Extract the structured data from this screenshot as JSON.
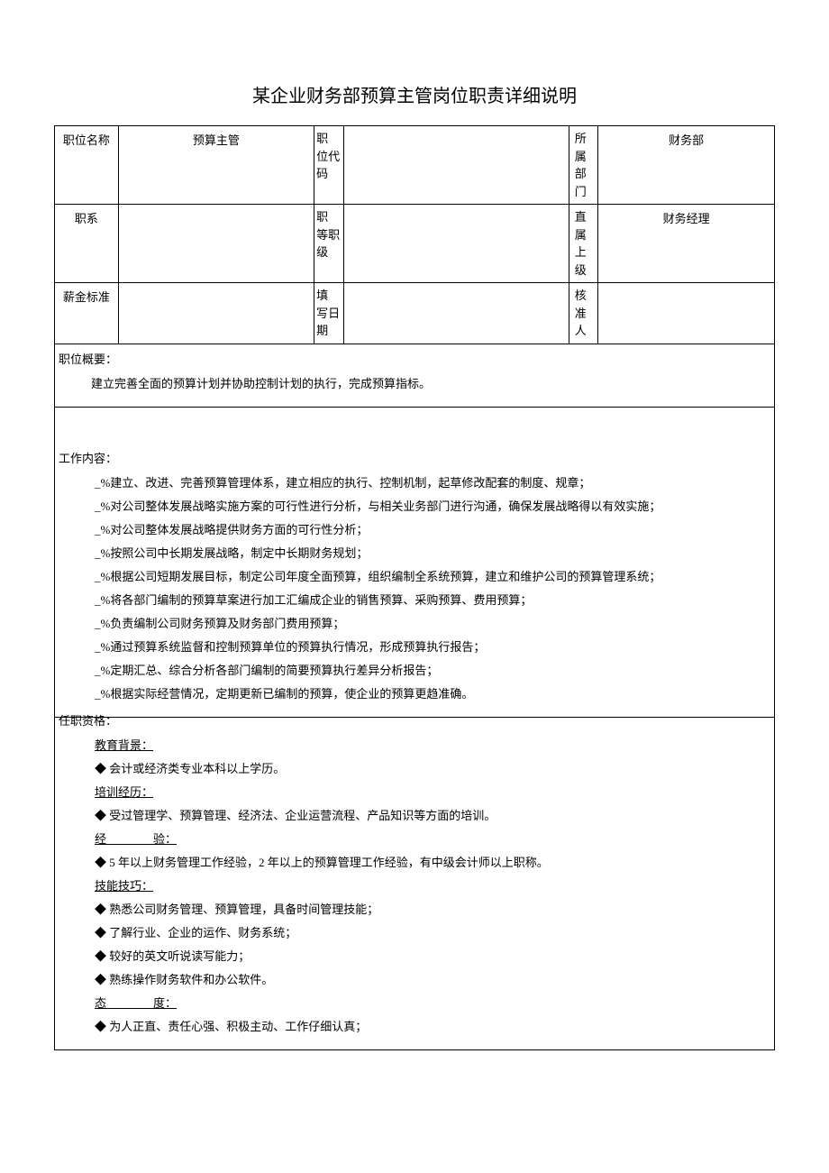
{
  "title": "某企业财务部预算主管岗位职责详细说明",
  "header_table": {
    "row1": {
      "label1": "职位名称",
      "value1": "预算主管",
      "label2": "职位代码",
      "value2": "",
      "label3": "所属部门",
      "value3": "财务部"
    },
    "row2": {
      "label1": "职系",
      "value1": "",
      "label2": "职等职级",
      "value2": "",
      "label3": "直属上级",
      "value3": "财务经理"
    },
    "row3": {
      "label1": "薪金标准",
      "value1": "",
      "label2": "填写日期",
      "value2": "",
      "label3": "核准人",
      "value3": ""
    }
  },
  "summary": {
    "header": "职位概要：",
    "body": "建立完善全面的预算计划并协助控制计划的执行，完成预算指标。"
  },
  "work": {
    "header": "工作内容：",
    "items": [
      "_%建立、改进、完善预算管理体系，建立相应的执行、控制机制，起草修改配套的制度、规章；",
      "_%对公司整体发展战略实施方案的可行性进行分析，与相关业务部门进行沟通，确保发展战略得以有效实施；",
      "_%对公司整体发展战略提供财务方面的可行性分析；",
      "_%按照公司中长期发展战略，制定中长期财务规划；",
      "_%根据公司短期发展目标，制定公司年度全面预算，组织编制全系统预算，建立和维护公司的预算管理系统；",
      "_%将各部门编制的预算草案进行加工汇编成企业的销售预算、采购预算、费用预算；",
      "_%负责编制公司财务预算及财务部门费用预算；",
      "_%通过预算系统监督和控制预算单位的预算执行情况，形成预算执行报告；",
      "_%定期汇总、综合分析各部门编制的简要预算执行差异分析报告；",
      "_%根据实际经营情况，定期更新已编制的预算，使企业的预算更趋准确。"
    ]
  },
  "qualifications": {
    "header": "任职资格：",
    "edu_header": "教育背景：",
    "edu_item": "◆ 会计或经济类专业本科以上学历。",
    "training_header": "培训经历：",
    "training_item": "◆ 受过管理学、预算管理、经济法、企业运营流程、产品知识等方面的培训。",
    "exp_header": "经　　　　验：",
    "exp_item": "◆ 5 年以上财务管理工作经验，2 年以上的预算管理工作经验，有中级会计师以上职称。",
    "skills_header": "技能技巧：",
    "skills": [
      "◆ 熟悉公司财务管理、预算管理，具备时间管理技能；",
      "◆ 了解行业、企业的运作、财务系统；",
      "◆ 较好的英文听说读写能力；",
      "◆ 熟练操作财务软件和办公软件。"
    ],
    "attitude_header": "态　　　　度：",
    "attitude_item": "◆ 为人正直、责任心强、积极主动、工作仔细认真；"
  },
  "colors": {
    "text": "#000000",
    "background": "#ffffff",
    "border": "#000000"
  }
}
